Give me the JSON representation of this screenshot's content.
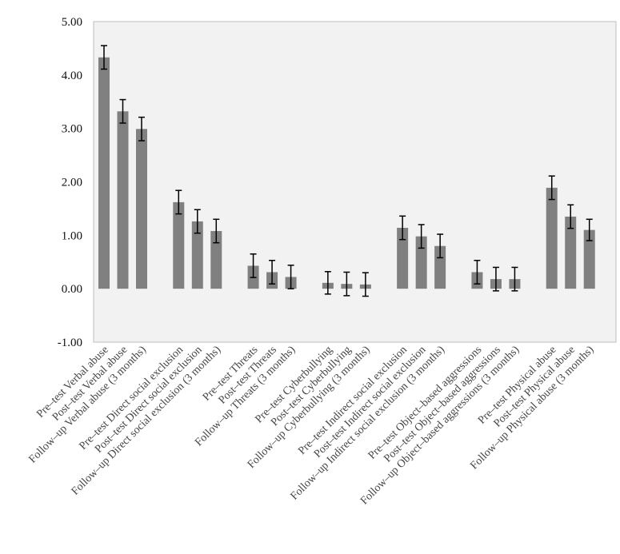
{
  "chart_data": {
    "type": "bar",
    "title": "",
    "xlabel": "",
    "ylabel": "",
    "ylim": [
      -1,
      5
    ],
    "yticks": [
      "5.00",
      "4.00",
      "3.00",
      "2.00",
      "1.00",
      "0.00",
      "-1.00"
    ],
    "grid": false,
    "colors": {
      "bar": "#808080",
      "plot_bg": "#f2f2f2",
      "error": "#000000"
    },
    "groups": [
      {
        "categories": [
          "Pre–test Verbal abuse",
          "Post–test Verbal abuse",
          "Follow–up Verbal abuse (3 months)"
        ],
        "values": [
          4.33,
          3.32,
          2.99
        ],
        "errors": [
          0.22,
          0.22,
          0.22
        ]
      },
      {
        "categories": [
          "Pre–test Direct social exclusion",
          "Post–test Direct social exclusion",
          "Follow–up Direct social exclusion (3 months)"
        ],
        "values": [
          1.62,
          1.26,
          1.08
        ],
        "errors": [
          0.22,
          0.22,
          0.22
        ]
      },
      {
        "categories": [
          "Pre–test Threats",
          "Post–test Threats",
          "Follow–up Threats (3 months)"
        ],
        "values": [
          0.43,
          0.31,
          0.22
        ],
        "errors": [
          0.22,
          0.22,
          0.22
        ]
      },
      {
        "categories": [
          "Pre–test Cyberbullying",
          "Post–test Cyberbullying",
          "Follow–up Cyberbullying (3 months)"
        ],
        "values": [
          0.11,
          0.09,
          0.08
        ],
        "errors": [
          0.21,
          0.22,
          0.22
        ]
      },
      {
        "categories": [
          "Pre–test Indirect social exclusion",
          "Post–test Indirect social exclusion",
          "Follow–up Indirect social exclusion (3 months)"
        ],
        "values": [
          1.14,
          0.98,
          0.8
        ],
        "errors": [
          0.22,
          0.22,
          0.22
        ]
      },
      {
        "categories": [
          "Pre–test Object–based aggressions",
          "Post–test Object–based aggressions",
          "Follow–up Object–based aggressions (3 months)"
        ],
        "values": [
          0.31,
          0.18,
          0.18
        ],
        "errors": [
          0.22,
          0.22,
          0.22
        ]
      },
      {
        "categories": [
          "Pre–test Physical abuse",
          "Post–test Physical abuse",
          "Follow–up Physical abuse (3 months)"
        ],
        "values": [
          1.89,
          1.35,
          1.1
        ],
        "errors": [
          0.22,
          0.22,
          0.2
        ]
      }
    ]
  }
}
